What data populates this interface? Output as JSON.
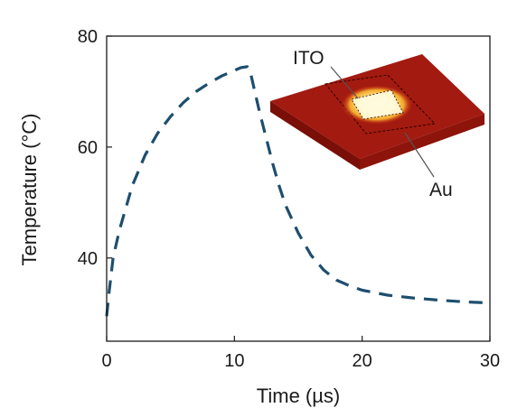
{
  "chart_data": {
    "type": "line",
    "xlabel": "Time (µs)",
    "ylabel": "Temperature (°C)",
    "xlim": [
      0,
      30
    ],
    "ylim": [
      25,
      80
    ],
    "xticks": [
      0,
      10,
      20,
      30
    ],
    "yticks": [
      40,
      60,
      80
    ],
    "series": [
      {
        "line_style": "dashed",
        "color": "#1d4e6e",
        "x": [
          0,
          0.2,
          0.5,
          1,
          1.5,
          2,
          3,
          4,
          5,
          6,
          7,
          8,
          9,
          10,
          10.5,
          11,
          11.2,
          11.6,
          12,
          12.5,
          13,
          13.5,
          14,
          15,
          16,
          17,
          18,
          19,
          20,
          22,
          24,
          26,
          28,
          30
        ],
        "y": [
          29.5,
          34,
          40,
          45,
          49,
          53,
          58.5,
          62.5,
          65.5,
          68,
          70,
          71.5,
          72.8,
          73.8,
          74.3,
          74.5,
          74,
          70,
          66,
          61.5,
          57,
          53,
          49.5,
          44.5,
          40.5,
          37.8,
          36,
          35,
          34.2,
          33.3,
          32.8,
          32.4,
          32.1,
          31.9
        ]
      }
    ],
    "annotations": [
      "ITO",
      "Au"
    ],
    "grid": false,
    "legend": "none"
  }
}
